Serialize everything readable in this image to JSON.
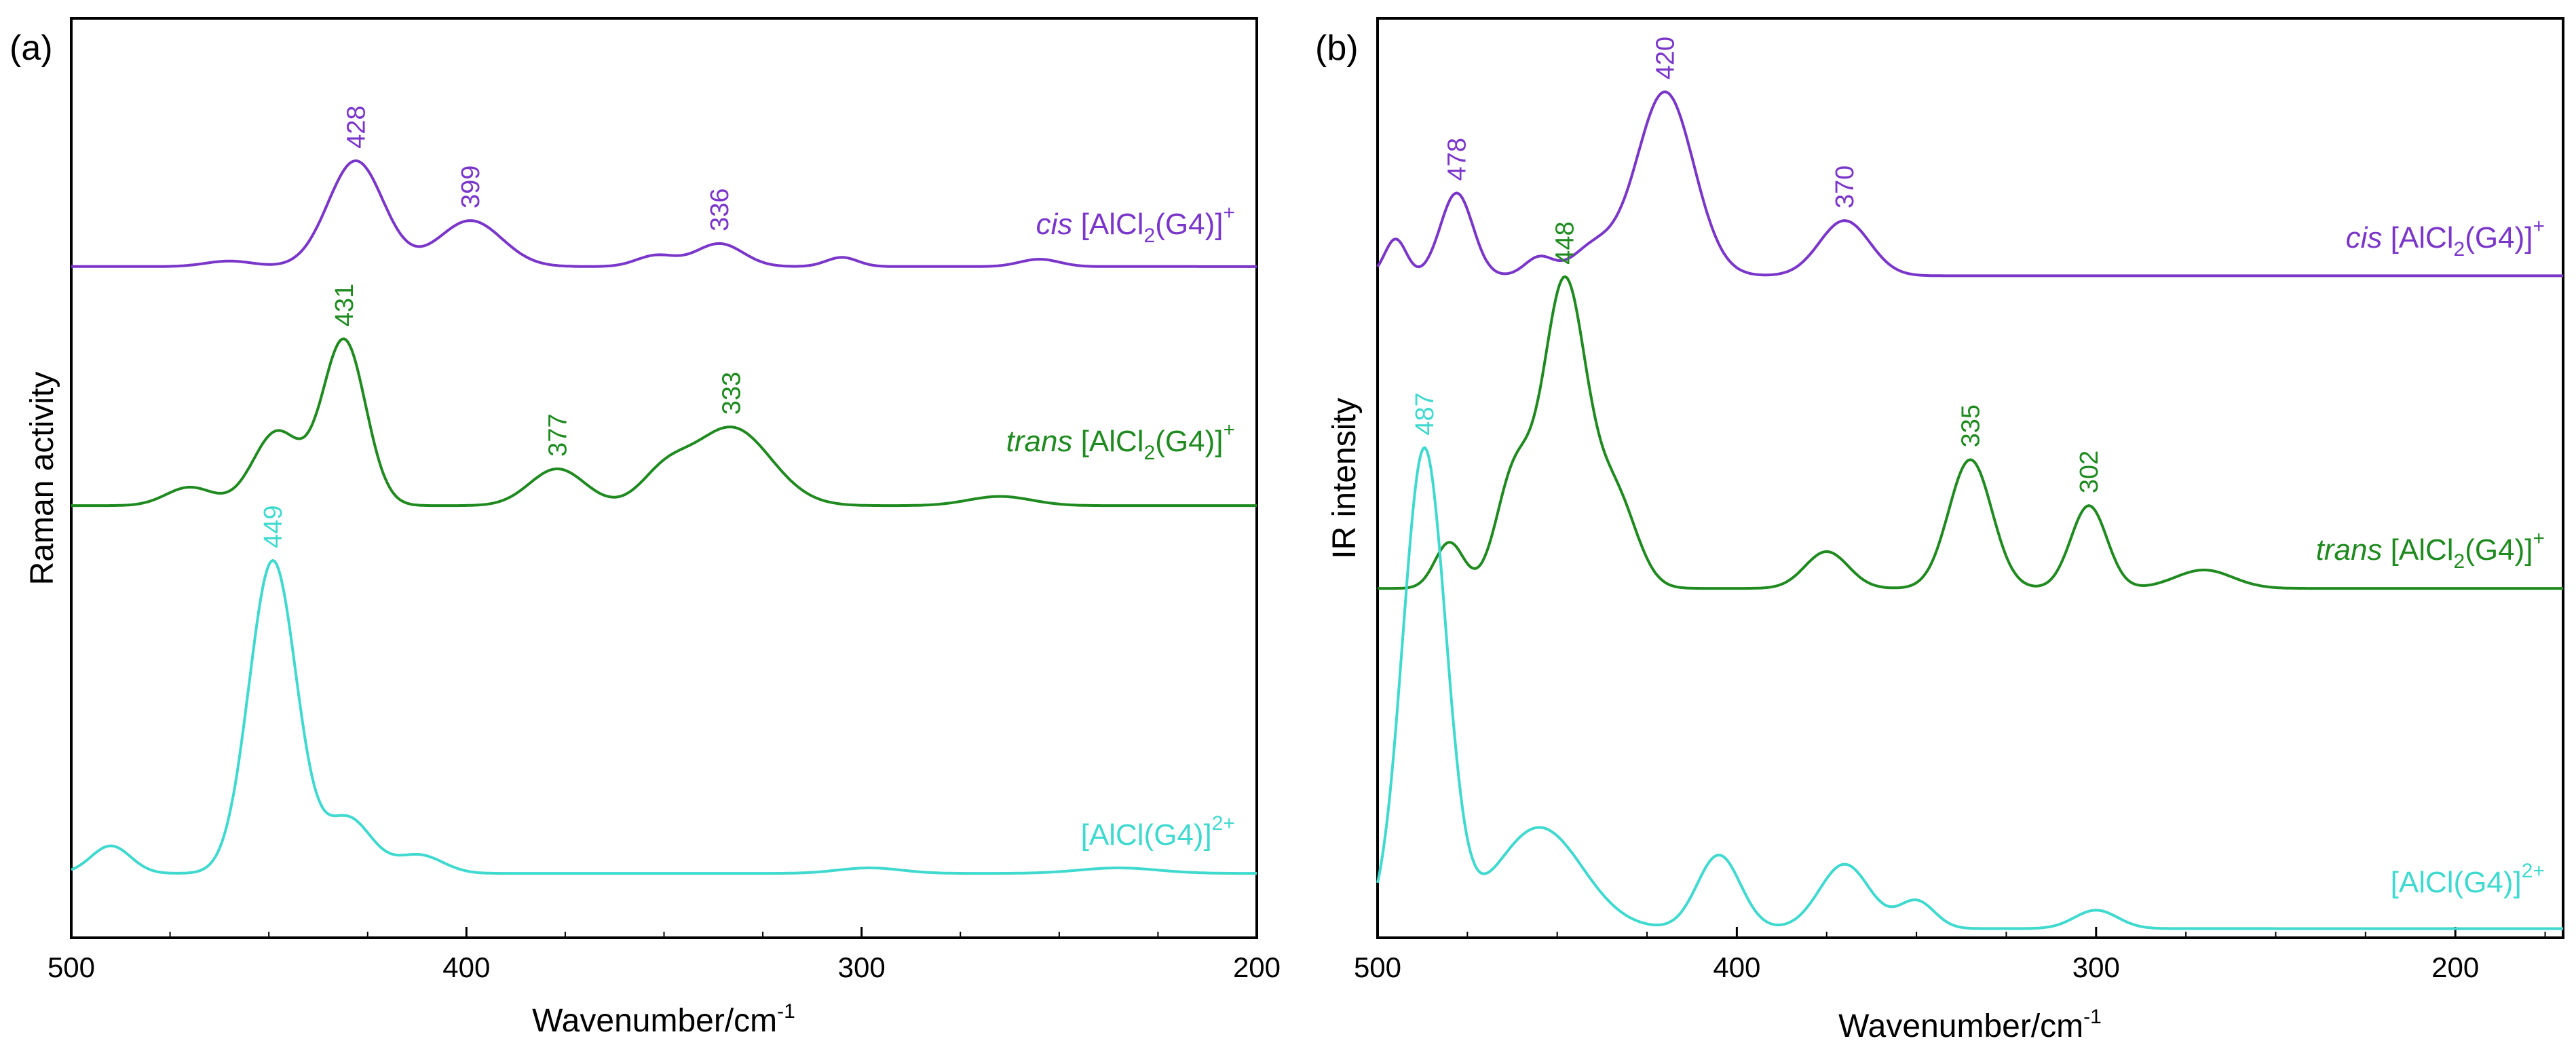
{
  "colors": {
    "purple": "#7a35c9",
    "green": "#1f8a1f",
    "cyan": "#3fd9cf"
  },
  "chart_data": [
    {
      "type": "line",
      "panel_label": "(a)",
      "ylabel": "Raman activity",
      "xlabel_main": "Wavenumber/cm",
      "xlabel_sup": "-1",
      "xlim": [
        500,
        200
      ],
      "ylim": [
        0,
        100
      ],
      "xticks": [
        500,
        400,
        300,
        200
      ],
      "series": [
        {
          "name": "cis",
          "label_prefix": "cis",
          "label_body": "[AlCl",
          "label_sub": "2",
          "label_tail": "(G4)]",
          "label_sup": "+",
          "color": "#7a35c9",
          "baseline": 73,
          "peaks": [
            [
              428,
              11.5,
              7
            ],
            [
              399,
              5,
              8
            ],
            [
              336,
              2.5,
              6
            ],
            [
              352,
              1.2,
              5
            ],
            [
              305,
              1,
              4
            ],
            [
              255,
              0.8,
              5
            ],
            [
              460,
              0.6,
              6
            ]
          ],
          "peak_labels": [
            "428",
            "399",
            "336"
          ]
        },
        {
          "name": "trans",
          "label_prefix": "trans",
          "label_body": "[AlCl",
          "label_sub": "2",
          "label_tail": "(G4)]",
          "label_sup": "+",
          "color": "#1f8a1f",
          "baseline": 47,
          "peaks": [
            [
              431,
              18,
              5.5
            ],
            [
              448,
              8,
              6
            ],
            [
              377,
              4,
              7
            ],
            [
              333,
              8.5,
              10
            ],
            [
              350,
              3,
              6
            ],
            [
              470,
              2,
              6
            ],
            [
              265,
              1,
              8
            ]
          ],
          "peak_labels": [
            "431",
            "377",
            "333"
          ]
        },
        {
          "name": "dication",
          "label_prefix": "",
          "label_body": "[AlCl(G4)]",
          "label_sub": "",
          "label_tail": "",
          "label_sup": "2+",
          "color": "#3fd9cf",
          "baseline": 7,
          "peaks": [
            [
              449,
              34,
              6
            ],
            [
              430,
              6,
              6
            ],
            [
              490,
              3,
              5
            ],
            [
              412,
              2,
              6
            ],
            [
              298,
              0.6,
              8
            ],
            [
              235,
              0.6,
              10
            ]
          ],
          "peak_labels": [
            "449"
          ]
        }
      ]
    },
    {
      "type": "line",
      "panel_label": "(b)",
      "ylabel": "IR intensity",
      "xlabel_main": "Wavenumber/cm",
      "xlabel_sup": "-1",
      "xlim": [
        500,
        170
      ],
      "ylim": [
        0,
        100
      ],
      "xticks": [
        500,
        400,
        300,
        200
      ],
      "series": [
        {
          "name": "cis",
          "label_prefix": "cis",
          "label_body": "[AlCl",
          "label_sub": "2",
          "label_tail": "(G4)]",
          "label_sup": "+",
          "color": "#7a35c9",
          "baseline": 72,
          "peaks": [
            [
              478,
              9,
              4.5
            ],
            [
              420,
              20,
              8
            ],
            [
              370,
              6,
              7
            ],
            [
              495,
              4,
              3
            ],
            [
              440,
              3,
              6
            ],
            [
              455,
              2,
              4
            ]
          ],
          "peak_labels": [
            "478",
            "420",
            "370"
          ]
        },
        {
          "name": "trans",
          "label_prefix": "trans",
          "label_body": "[AlCl",
          "label_sub": "2",
          "label_tail": "(G4)]",
          "label_sup": "+",
          "color": "#1f8a1f",
          "baseline": 38,
          "peaks": [
            [
              448,
              33,
              6
            ],
            [
              462,
              12,
              5
            ],
            [
              434,
              10,
              6
            ],
            [
              480,
              5,
              4
            ],
            [
              335,
              14,
              6
            ],
            [
              302,
              9,
              5
            ],
            [
              375,
              4,
              6
            ],
            [
              270,
              2,
              8
            ]
          ],
          "peak_labels": [
            "448",
            "335",
            "302"
          ]
        },
        {
          "name": "dication",
          "label_prefix": "",
          "label_body": "[AlCl(G4)]",
          "label_sub": "",
          "label_tail": "",
          "label_sup": "2+",
          "color": "#3fd9cf",
          "baseline": 1,
          "peaks": [
            [
              487,
              52,
              6
            ],
            [
              455,
              11,
              12
            ],
            [
              405,
              8,
              6
            ],
            [
              370,
              7,
              7
            ],
            [
              350,
              3,
              5
            ],
            [
              300,
              2,
              6
            ]
          ],
          "peak_labels": [
            "487"
          ]
        }
      ]
    }
  ]
}
